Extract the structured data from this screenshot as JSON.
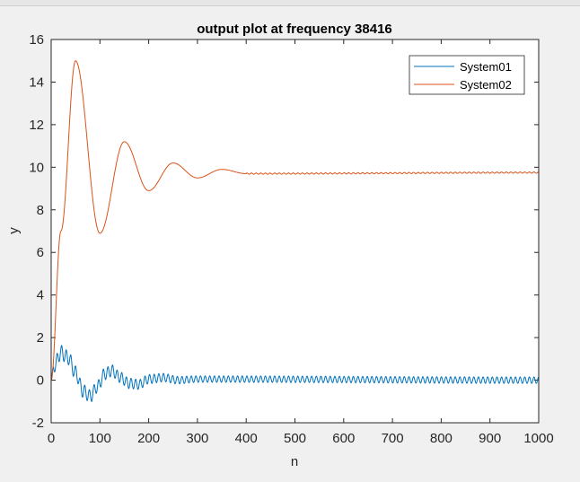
{
  "chart_data": {
    "type": "line",
    "title": "output plot at frequency 38416",
    "xlabel": "n",
    "ylabel": "y",
    "xlim": [
      0,
      1000
    ],
    "ylim": [
      -2,
      16
    ],
    "xticks": [
      0,
      100,
      200,
      300,
      400,
      500,
      600,
      700,
      800,
      900,
      1000
    ],
    "yticks": [
      -2,
      0,
      2,
      4,
      6,
      8,
      10,
      12,
      14,
      16
    ],
    "grid": false,
    "legend_position": "top-right",
    "series": [
      {
        "name": "System01",
        "color": "#0072bd",
        "decay_envelope": [
          [
            0,
            0.0
          ],
          [
            5,
            0.6
          ],
          [
            20,
            1.3
          ],
          [
            35,
            1.05
          ],
          [
            50,
            0.35
          ],
          [
            65,
            -0.5
          ],
          [
            80,
            -0.75
          ],
          [
            95,
            -0.3
          ],
          [
            110,
            0.3
          ],
          [
            125,
            0.45
          ],
          [
            140,
            0.15
          ],
          [
            160,
            -0.15
          ],
          [
            180,
            -0.2
          ],
          [
            200,
            0.05
          ],
          [
            230,
            0.12
          ],
          [
            260,
            0.0
          ],
          [
            300,
            0.05
          ],
          [
            1000,
            0.0
          ]
        ],
        "ripple_amplitude_start": 0.35,
        "ripple_amplitude_end": 0.15,
        "ripple_period_n": 9.5
      },
      {
        "name": "System02",
        "color": "#d95319",
        "key_points": [
          [
            0,
            0.0
          ],
          [
            20,
            7.0
          ],
          [
            50,
            15.0
          ],
          [
            100,
            6.9
          ],
          [
            150,
            11.2
          ],
          [
            200,
            8.9
          ],
          [
            250,
            10.2
          ],
          [
            300,
            9.5
          ],
          [
            350,
            9.9
          ],
          [
            400,
            9.7
          ],
          [
            1000,
            9.75
          ]
        ],
        "steady_state": 9.75
      }
    ]
  }
}
